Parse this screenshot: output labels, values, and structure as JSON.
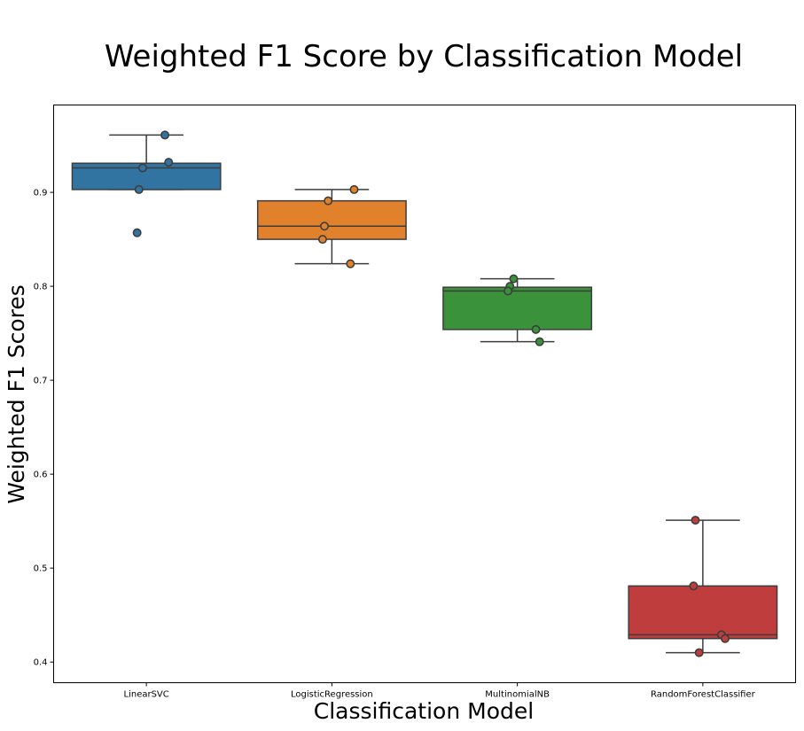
{
  "chart_data": {
    "type": "box",
    "title": "Weighted F1 Score by Classification Model",
    "xlabel": "Classification Model",
    "ylabel": "Weighted F1 Scores",
    "ylim": [
      0.378,
      0.993
    ],
    "yticks": [
      "0.4",
      "0.5",
      "0.6",
      "0.7",
      "0.8",
      "0.9"
    ],
    "grid": false,
    "categories": [
      "LinearSVC",
      "LogisticRegression",
      "MultinomialNB",
      "RandomForestClassifier"
    ],
    "boxes": [
      {
        "category": "LinearSVC",
        "color": "#3274a1",
        "whisker_low": 0.903,
        "q1": 0.903,
        "median": 0.926,
        "q3": 0.931,
        "whisker_high": 0.961,
        "points": [
          0.961,
          0.932,
          0.926,
          0.903,
          0.857
        ]
      },
      {
        "category": "LogisticRegression",
        "color": "#e1812c",
        "whisker_low": 0.824,
        "q1": 0.85,
        "median": 0.864,
        "q3": 0.891,
        "whisker_high": 0.903,
        "points": [
          0.903,
          0.891,
          0.864,
          0.85,
          0.824
        ]
      },
      {
        "category": "MultinomialNB",
        "color": "#3a923a",
        "whisker_low": 0.741,
        "q1": 0.754,
        "median": 0.795,
        "q3": 0.799,
        "whisker_high": 0.808,
        "points": [
          0.808,
          0.8,
          0.795,
          0.754,
          0.741
        ]
      },
      {
        "category": "RandomForestClassifier",
        "color": "#c03d3e",
        "whisker_low": 0.41,
        "q1": 0.425,
        "median": 0.429,
        "q3": 0.481,
        "whisker_high": 0.551,
        "points": [
          0.551,
          0.481,
          0.429,
          0.425,
          0.41
        ]
      }
    ]
  }
}
